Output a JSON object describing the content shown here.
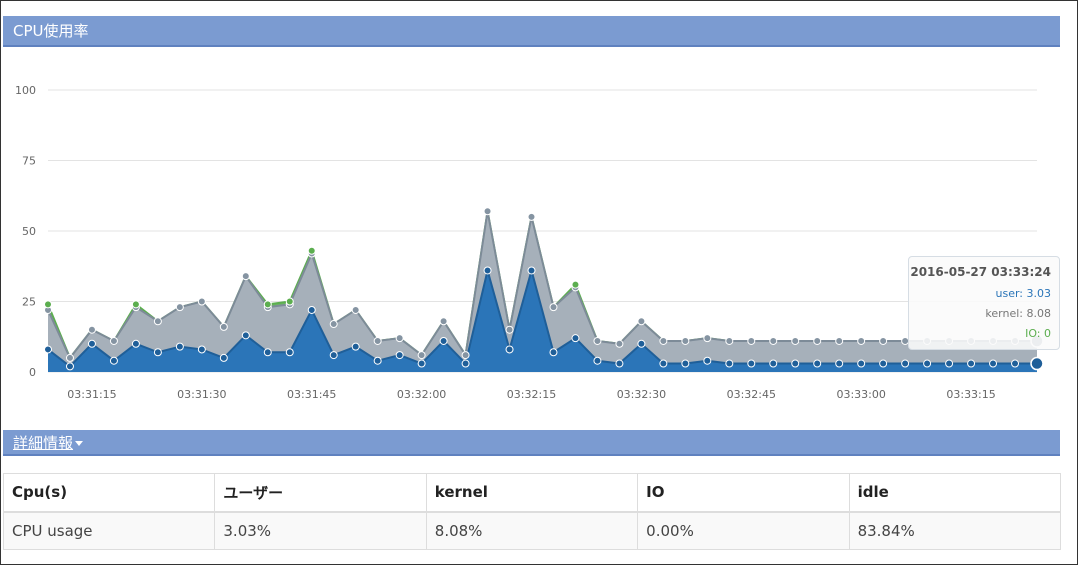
{
  "panel": {
    "title": "CPU使用率"
  },
  "chart_data": {
    "type": "area",
    "stacked": true,
    "title": "",
    "xlabel": "",
    "ylabel": "",
    "ylim": [
      0,
      100
    ],
    "yticks": [
      0,
      25,
      50,
      75,
      100
    ],
    "x_tick_labels": [
      "03:31:15",
      "03:31:30",
      "03:31:45",
      "03:32:00",
      "03:32:15",
      "03:32:30",
      "03:32:45",
      "03:33:00",
      "03:33:15"
    ],
    "x": [
      "03:31:09",
      "03:31:12",
      "03:31:15",
      "03:31:18",
      "03:31:21",
      "03:31:24",
      "03:31:27",
      "03:31:30",
      "03:31:33",
      "03:31:36",
      "03:31:39",
      "03:31:42",
      "03:31:45",
      "03:31:48",
      "03:31:51",
      "03:31:54",
      "03:31:57",
      "03:32:00",
      "03:32:03",
      "03:32:06",
      "03:32:09",
      "03:32:12",
      "03:32:15",
      "03:32:18",
      "03:32:21",
      "03:32:24",
      "03:32:27",
      "03:32:30",
      "03:32:33",
      "03:32:36",
      "03:32:39",
      "03:32:42",
      "03:32:45",
      "03:32:48",
      "03:32:51",
      "03:32:54",
      "03:32:57",
      "03:33:00",
      "03:33:03",
      "03:33:06",
      "03:33:09",
      "03:33:12",
      "03:33:15",
      "03:33:18",
      "03:33:21",
      "03:33:24"
    ],
    "series": [
      {
        "name": "user",
        "color": "#2b75b8",
        "values": [
          8,
          2,
          10,
          4,
          10,
          7,
          9,
          8,
          5,
          13,
          7,
          7,
          22,
          6,
          9,
          4,
          6,
          3,
          11,
          3,
          36,
          8,
          36,
          7,
          12,
          4,
          3,
          10,
          3,
          3,
          4,
          3,
          3,
          3,
          3,
          3,
          3,
          3,
          3,
          3,
          3,
          3,
          3,
          3,
          3,
          3
        ]
      },
      {
        "name": "kernel",
        "color": "#a6b0ba",
        "values": [
          14,
          3,
          5,
          7,
          13,
          11,
          14,
          17,
          11,
          21,
          16,
          17,
          20,
          11,
          13,
          7,
          6,
          3,
          7,
          3,
          21,
          7,
          19,
          16,
          18,
          7,
          7,
          8,
          8,
          8,
          8,
          8,
          8,
          8,
          8,
          8,
          8,
          8,
          8,
          8,
          8,
          8,
          8,
          8,
          8,
          8
        ]
      },
      {
        "name": "IO",
        "color": "#5cae4f",
        "values": [
          2,
          0,
          0,
          0,
          1,
          0,
          0,
          0,
          0,
          0,
          1,
          1,
          1,
          0,
          0,
          0,
          0,
          0,
          0,
          0,
          0,
          0,
          0,
          0,
          1,
          0,
          0,
          0,
          0,
          0,
          0,
          0,
          0,
          0,
          0,
          0,
          0,
          0,
          0,
          0,
          0,
          0,
          0,
          0,
          0,
          0
        ]
      }
    ]
  },
  "tooltip": {
    "time": "2016-05-27 03:33:24",
    "user": "user: 3.03",
    "kernel": "kernel: 8.08",
    "io": "IO: 0",
    "user_color": "#2b75b8",
    "kernel_color": "#777777",
    "io_color": "#5cae4f"
  },
  "details": {
    "toggle_label": "詳細情報",
    "headers": [
      "Cpu(s)",
      "ユーザー",
      "kernel",
      "IO",
      "idle"
    ],
    "row": [
      "CPU usage",
      "3.03%",
      "8.08%",
      "0.00%",
      "83.84%"
    ]
  }
}
